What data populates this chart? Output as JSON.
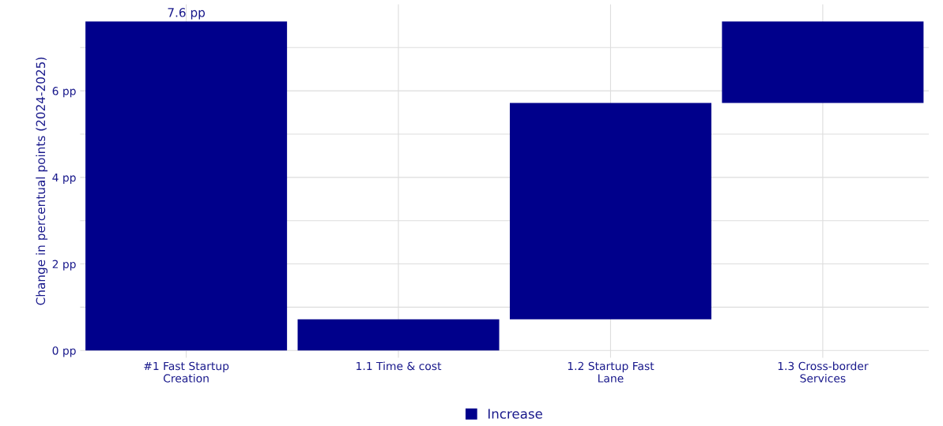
{
  "chart_data": {
    "type": "bar",
    "categories": [
      "#1 Fast Startup\nCreation",
      "1.1 Time & cost",
      "1.2 Startup Fast\nLane",
      "1.3 Cross-border\nServices"
    ],
    "series": [
      {
        "name": "Increase",
        "color": "#00008b",
        "values": [
          7.6,
          0.72,
          5.0,
          1.88
        ],
        "base": [
          0,
          0,
          0.72,
          5.72
        ],
        "value_labels": [
          "7.6 pp",
          null,
          null,
          null
        ]
      }
    ],
    "ylabel": "Change in percentual points (2024-2025)",
    "ylim": [
      -0.17,
      8.0
    ],
    "yticks": [
      {
        "value": 0,
        "label": "0 pp"
      },
      {
        "value": 1,
        "label": null
      },
      {
        "value": 2,
        "label": "2 pp"
      },
      {
        "value": 3,
        "label": null
      },
      {
        "value": 4,
        "label": "4 pp"
      },
      {
        "value": 5,
        "label": null
      },
      {
        "value": 6,
        "label": "6 pp"
      },
      {
        "value": 7,
        "label": null
      }
    ],
    "grid": true,
    "legend": "bottom"
  }
}
